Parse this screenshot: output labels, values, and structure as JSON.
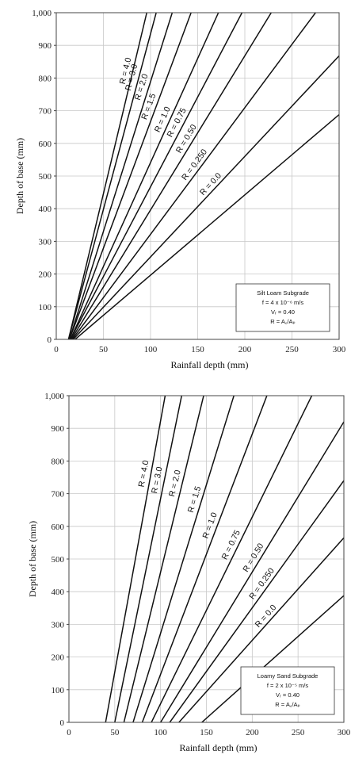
{
  "chart_data": [
    {
      "type": "line",
      "title": "",
      "xlabel": "Rainfall depth (mm)",
      "ylabel": "Depth of base (mm)",
      "xlim": [
        0,
        300
      ],
      "ylim": [
        0,
        1000
      ],
      "xticks": [
        "0",
        "50",
        "100",
        "150",
        "200",
        "250",
        "300"
      ],
      "yticks": [
        "0",
        "100",
        "200",
        "300",
        "400",
        "500",
        "600",
        "700",
        "800",
        "900",
        "1,000"
      ],
      "grid": true,
      "annotation_box": {
        "position": "bottom-right",
        "lines": [
          "Silt Loam Subgrade",
          "f = 4 x 10⁻⁶ m/s",
          "Vᵣ = 0.40",
          "R = A꜀/Aₚ"
        ]
      },
      "series": [
        {
          "name": "R = 4.0",
          "x": [
            13,
            96
          ],
          "y": [
            0,
            1000
          ]
        },
        {
          "name": "R = 3.0",
          "x": [
            13,
            106
          ],
          "y": [
            0,
            1000
          ]
        },
        {
          "name": "R = 2.0",
          "x": [
            14,
            123
          ],
          "y": [
            0,
            1000
          ]
        },
        {
          "name": "R = 1.5",
          "x": [
            14,
            143
          ],
          "y": [
            0,
            1000
          ]
        },
        {
          "name": "R = 1.0",
          "x": [
            15,
            172
          ],
          "y": [
            0,
            1000
          ]
        },
        {
          "name": "R = 0.75",
          "x": [
            15,
            197
          ],
          "y": [
            0,
            1000
          ]
        },
        {
          "name": "R = 0.50",
          "x": [
            16,
            228
          ],
          "y": [
            0,
            1000
          ]
        },
        {
          "name": "R = 0.250",
          "x": [
            17,
            275
          ],
          "y": [
            0,
            1000
          ]
        },
        {
          "name": "R = 0.0",
          "x": [
            18,
            300
          ],
          "y": [
            0,
            868
          ]
        },
        {
          "name": "",
          "x": [
            20,
            300
          ],
          "y": [
            0,
            688
          ]
        }
      ]
    },
    {
      "type": "line",
      "title": "",
      "xlabel": "Rainfall depth (mm)",
      "ylabel": "Depth of base (mm)",
      "xlim": [
        0,
        300
      ],
      "ylim": [
        0,
        1000
      ],
      "xticks": [
        "0",
        "50",
        "100",
        "150",
        "200",
        "250",
        "300"
      ],
      "yticks": [
        "0",
        "100",
        "200",
        "300",
        "400",
        "500",
        "600",
        "700",
        "800",
        "900",
        "1,000"
      ],
      "grid": true,
      "annotation_box": {
        "position": "bottom-right",
        "lines": [
          "Loamy Sand Subgrade",
          "f = 2 x 10⁻⁵ m/s",
          "Vᵣ = 0.40",
          "R = A꜀/Aₚ"
        ]
      },
      "series": [
        {
          "name": "R = 4.0",
          "x": [
            40,
            105
          ],
          "y": [
            0,
            1000
          ]
        },
        {
          "name": "R = 3.0",
          "x": [
            50,
            123
          ],
          "y": [
            0,
            1000
          ]
        },
        {
          "name": "R = 2.0",
          "x": [
            60,
            147
          ],
          "y": [
            0,
            1000
          ]
        },
        {
          "name": "R = 1.5",
          "x": [
            70,
            180
          ],
          "y": [
            0,
            1000
          ]
        },
        {
          "name": "R = 1.0",
          "x": [
            80,
            216
          ],
          "y": [
            0,
            1000
          ]
        },
        {
          "name": "R = 0.75",
          "x": [
            90,
            265
          ],
          "y": [
            0,
            1000
          ]
        },
        {
          "name": "R = 0.50",
          "x": [
            100,
            300
          ],
          "y": [
            0,
            920
          ]
        },
        {
          "name": "R = 0.250",
          "x": [
            110,
            300
          ],
          "y": [
            0,
            740
          ]
        },
        {
          "name": "R = 0.0",
          "x": [
            120,
            300
          ],
          "y": [
            0,
            565
          ]
        },
        {
          "name": "",
          "x": [
            145,
            300
          ],
          "y": [
            0,
            388
          ]
        }
      ]
    }
  ]
}
